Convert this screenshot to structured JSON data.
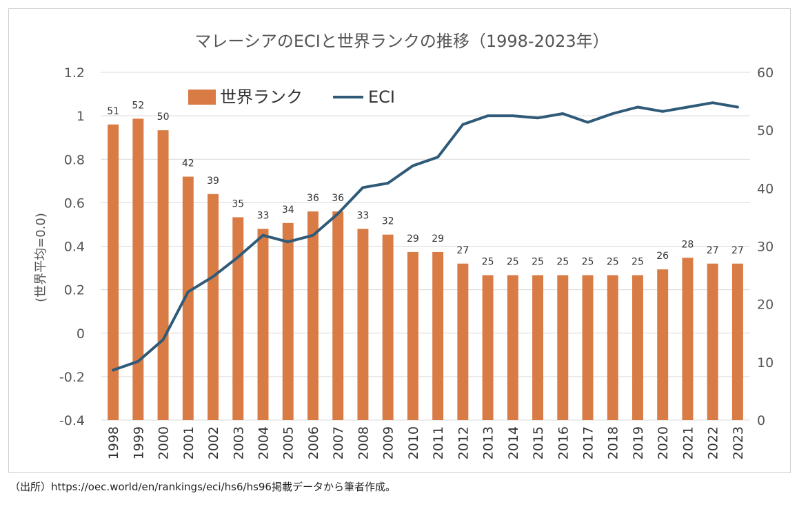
{
  "chart_data": {
    "type": "bar+line",
    "title": "マレーシアのECIと世界ランクの推移（1998-2023年）",
    "ylabel_left": "(世界平均=0.0)",
    "ylim_left": [
      -0.4,
      1.2
    ],
    "yticks_left": [
      "1.2",
      "1",
      "0.8",
      "0.6",
      "0.4",
      "0.2",
      "0",
      "-0.2",
      "-0.4"
    ],
    "ylim_right": [
      0,
      60
    ],
    "yticks_right": [
      "60",
      "50",
      "40",
      "30",
      "20",
      "10",
      "0"
    ],
    "categories": [
      "1998",
      "1999",
      "2000",
      "2001",
      "2002",
      "2003",
      "2004",
      "2005",
      "2006",
      "2007",
      "2008",
      "2009",
      "2010",
      "2011",
      "2012",
      "2013",
      "2014",
      "2015",
      "2016",
      "2017",
      "2018",
      "2019",
      "2020",
      "2021",
      "2022",
      "2023"
    ],
    "series": [
      {
        "name": "世界ランク",
        "type": "bar",
        "axis": "right",
        "color": "#D97B45",
        "values": [
          51,
          52,
          50,
          42,
          39,
          35,
          33,
          34,
          36,
          36,
          33,
          32,
          29,
          29,
          27,
          25,
          25,
          25,
          25,
          25,
          25,
          25,
          26,
          28,
          27,
          27
        ],
        "labels": [
          "51",
          "52",
          "50",
          "42",
          "39",
          "35",
          "33",
          "34",
          "36",
          "36",
          "33",
          "32",
          "29",
          "29",
          "27",
          "25",
          "25",
          "25",
          "25",
          "25",
          "25",
          "25",
          "26",
          "28",
          "27",
          "27"
        ]
      },
      {
        "name": "ECI",
        "type": "line",
        "axis": "left",
        "color": "#2F5A78",
        "values": [
          -0.17,
          -0.13,
          -0.03,
          0.19,
          0.26,
          0.35,
          0.45,
          0.42,
          0.45,
          0.55,
          0.67,
          0.69,
          0.77,
          0.81,
          0.96,
          1.0,
          1.0,
          0.99,
          1.01,
          0.97,
          1.01,
          1.04,
          1.02,
          1.04,
          1.06,
          1.04
        ]
      }
    ],
    "legend_position": "top-left",
    "grid": true
  },
  "source_note": "（出所）https://oec.world/en/rankings/eci/hs6/hs96掲載データから筆者作成。"
}
